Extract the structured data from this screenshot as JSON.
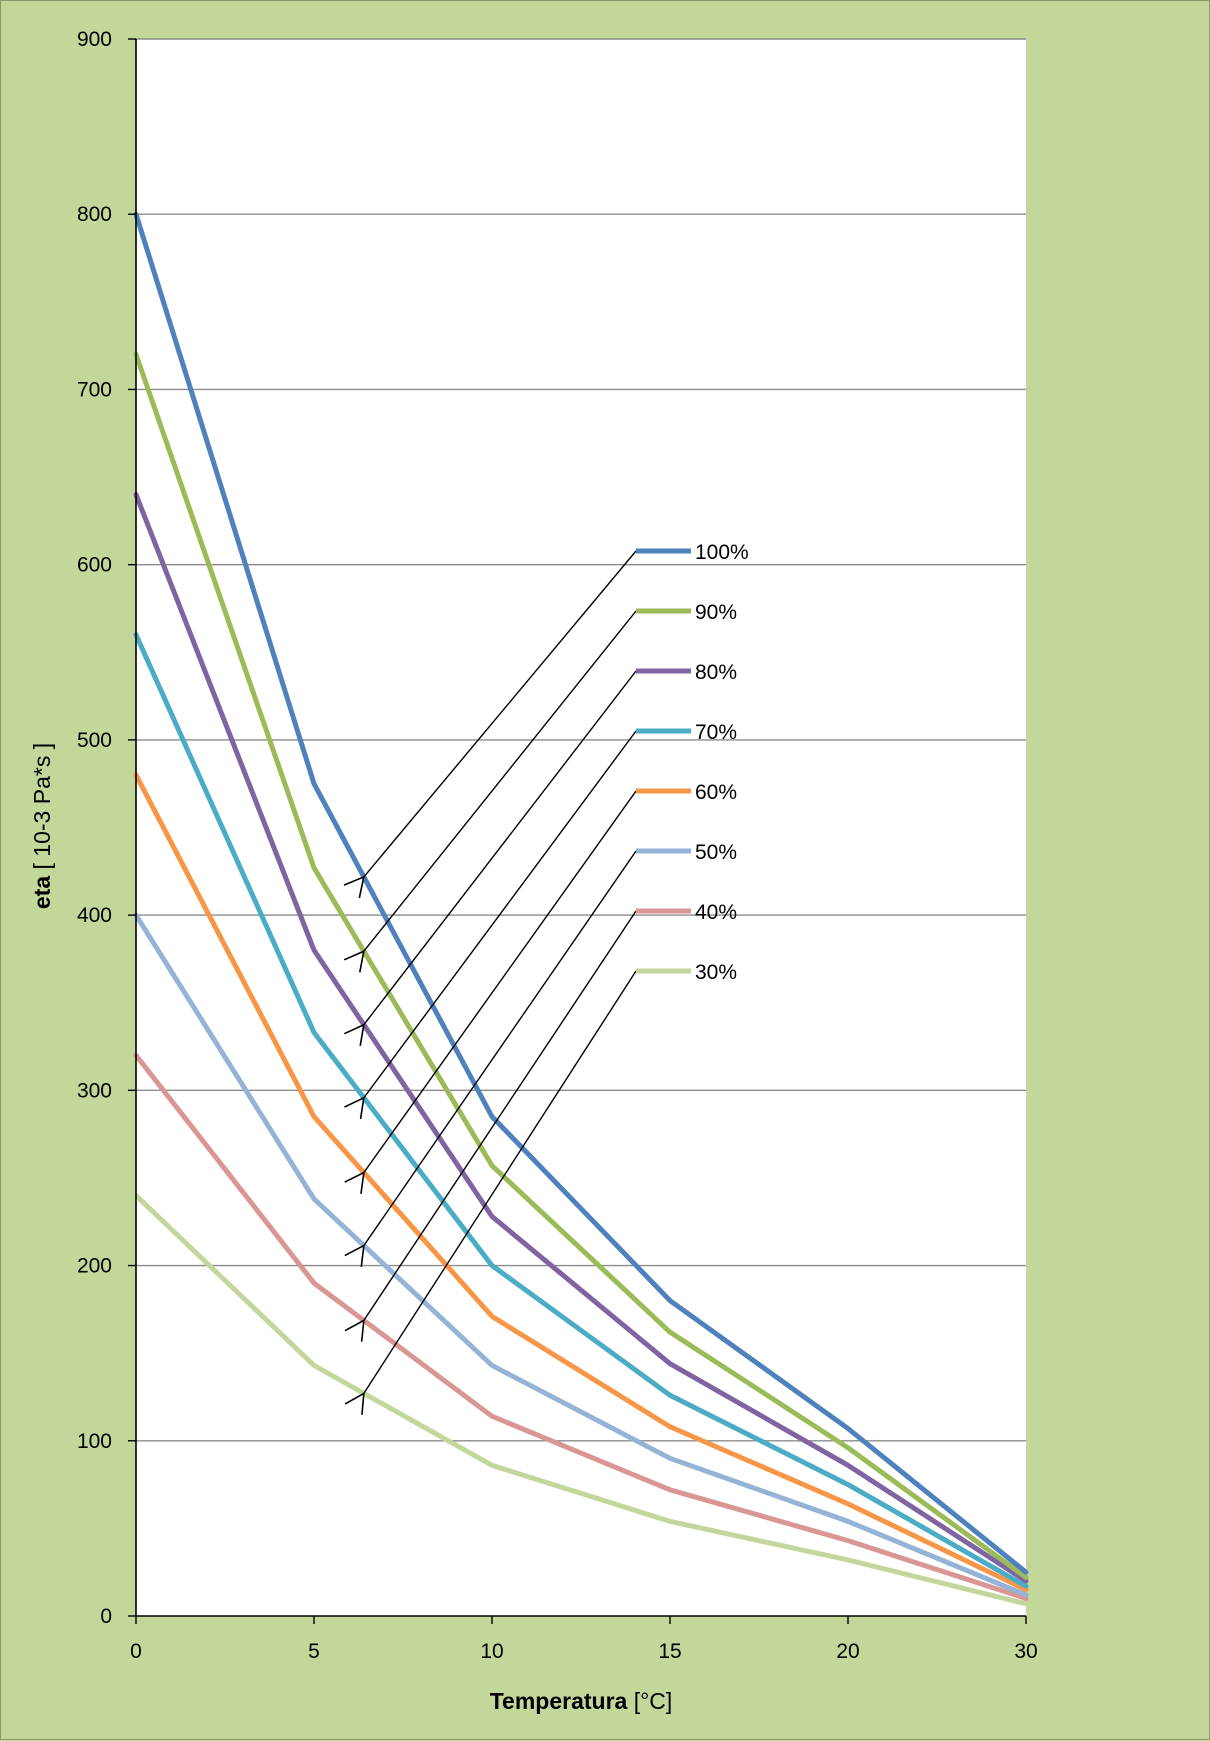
{
  "chart_data": {
    "type": "line",
    "x": [
      "0",
      "5",
      "10",
      "15",
      "20",
      "30"
    ],
    "xlabel": "Temperatura [°C]",
    "xlabel_bold": "Temperatura",
    "xlabel_rest": " [°C]",
    "ylabel_bold": "eta",
    "ylabel_rest": " [ 10-3 Pa*s ]",
    "ylim": [
      0,
      900
    ],
    "yticks": [
      "0",
      "100",
      "200",
      "300",
      "400",
      "500",
      "600",
      "700",
      "800",
      "900"
    ],
    "grid": true,
    "plot_background": "#ffffff",
    "page_background": "#c4d79b",
    "series": [
      {
        "name": "100%",
        "color": "#4f81bd",
        "values": [
          800,
          475,
          285,
          180,
          107,
          25
        ]
      },
      {
        "name": "90%",
        "color": "#9bbb59",
        "values": [
          720,
          427,
          257,
          162,
          96,
          22
        ]
      },
      {
        "name": "80%",
        "color": "#8064a2",
        "values": [
          640,
          380,
          228,
          144,
          86,
          20
        ]
      },
      {
        "name": "70%",
        "color": "#4bacc6",
        "values": [
          560,
          333,
          200,
          126,
          75,
          17
        ]
      },
      {
        "name": "60%",
        "color": "#f79646",
        "values": [
          480,
          285,
          171,
          108,
          64,
          15
        ]
      },
      {
        "name": "50%",
        "color": "#95b3d7",
        "values": [
          400,
          238,
          143,
          90,
          54,
          12
        ]
      },
      {
        "name": "40%",
        "color": "#d99694",
        "values": [
          320,
          190,
          114,
          72,
          43,
          10
        ]
      },
      {
        "name": "30%",
        "color": "#c3d69b",
        "values": [
          240,
          143,
          86,
          54,
          32,
          7
        ]
      }
    ],
    "legend_position": "center-right",
    "annotations": "arrows from each legend entry to its line"
  }
}
